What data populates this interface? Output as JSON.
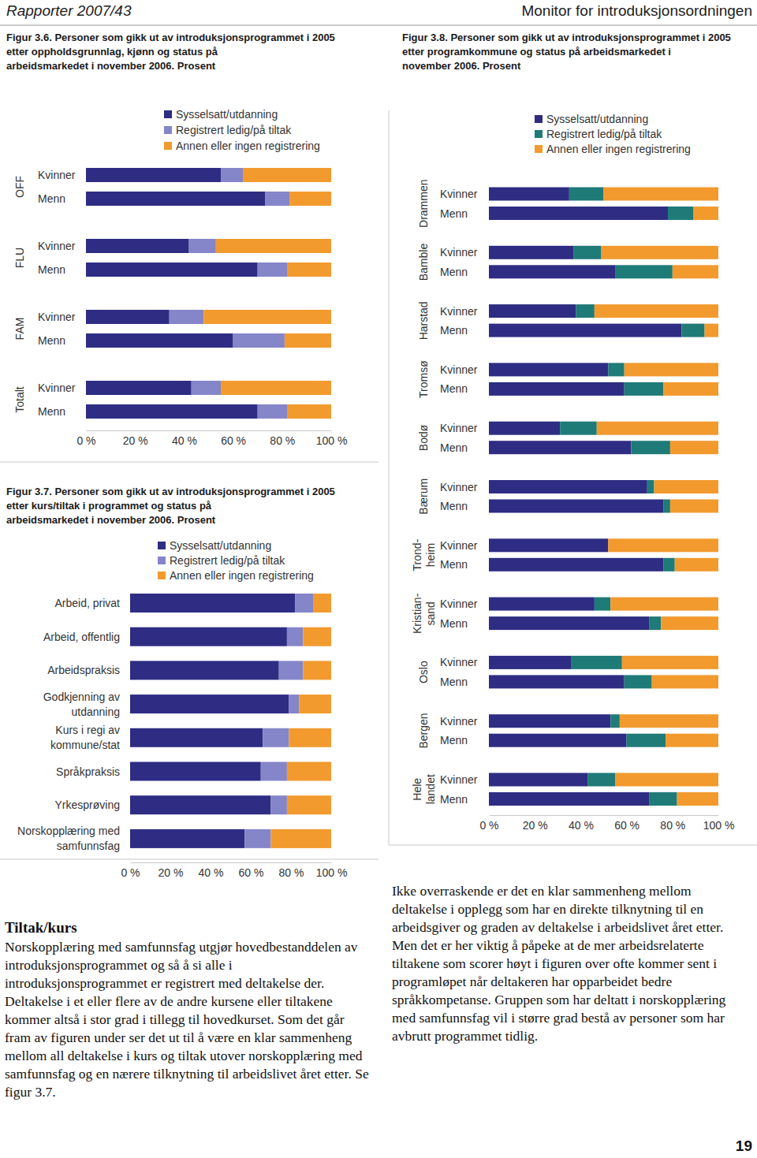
{
  "page": {
    "header_left": "Rapporter 2007/43",
    "header_right": "Monitor for introduksjonsordningen",
    "page_number": "19",
    "left_heading": "Tiltak/kurs",
    "left_paragraph": "Norskopplæring med samfunnsfag utgjør hovedbestanddelen av introduksjonsprogrammet og så å si alle i introduksjonsprogrammet er registrert med deltakelse der. Deltakelse i et eller flere av de andre kursene eller tiltakene kommer altså i stor grad i tillegg til hovedkurset. Som det går fram av figuren under ser det ut til å være en klar sammenheng mellom all deltakelse i kurs og tiltak utover norskopplæring med samfunnsfag og en nærere tilknytning til arbeidslivet året etter. Se figur 3.7.",
    "right_paragraph": "Ikke overraskende er det en klar sammenheng mellom deltakelse i opplegg som har en direkte tilknytning til en arbeidsgiver og graden av deltakelse i arbeidslivet året etter. Men det er her viktig å påpeke at de mer arbeidsrelaterte tiltakene som scorer høyt i figuren over ofte kommer sent i programløpet når deltakeren har opparbeidet bedre språkkompetanse. Gruppen som har deltatt i norskopplæring med samfunnsfag vil i større grad bestå av personer som har avbrutt programmet tidlig."
  },
  "chart_data": [
    {
      "type": "bar",
      "orientation": "horizontal",
      "stacked": true,
      "title": "Figur 3.6. Personer som gikk ut av introduksjonsprogrammet i 2005\netter oppholdsgrunnlag, kjønn og status på\narbeidsmarkedet i november 2006. Prosent",
      "groups": [
        "OFF",
        "FLU",
        "FAM",
        "Totalt"
      ],
      "categories": [
        "Kvinner",
        "Menn",
        "Kvinner",
        "Menn",
        "Kvinner",
        "Menn",
        "Kvinner",
        "Menn"
      ],
      "series": [
        {
          "name": "Sysselsatt/utdanning",
          "color": "#2e2d83",
          "values": [
            55,
            73,
            42,
            70,
            34,
            60,
            43,
            70
          ]
        },
        {
          "name": "Registrert ledig/på tiltak",
          "color": "#8585c9",
          "values": [
            9,
            10,
            11,
            12,
            14,
            21,
            12,
            12
          ]
        },
        {
          "name": "Annen eller ingen registrering",
          "color": "#f29a2e",
          "values": [
            36,
            17,
            47,
            18,
            52,
            19,
            45,
            18
          ]
        }
      ],
      "xlim": [
        0,
        100
      ],
      "xticks": [
        {
          "value": 0,
          "label": "0 %"
        },
        {
          "value": 20,
          "label": "20 %"
        },
        {
          "value": 40,
          "label": "40 %"
        },
        {
          "value": 60,
          "label": "60 %"
        },
        {
          "value": 80,
          "label": "80 %"
        },
        {
          "value": 100,
          "label": "100 %"
        }
      ]
    },
    {
      "type": "bar",
      "orientation": "horizontal",
      "stacked": true,
      "title": "Figur 3.7. Personer som gikk ut av introduksjonsprogrammet i 2005\netter kurs/tiltak i programmet og status på\narbeidsmarkedet i november 2006. Prosent",
      "categories": [
        "Arbeid, privat",
        "Arbeid, offentlig",
        "Arbeidspraksis",
        "Godkjenning av\nutdanning",
        "Kurs i regi av\nkommune/stat",
        "Språkpraksis",
        "Yrkesprøving",
        "Norskopplæring med\nsamfunnsfag"
      ],
      "series": [
        {
          "name": "Sysselsatt/utdanning",
          "color": "#2e2d83",
          "values": [
            82,
            78,
            74,
            79,
            66,
            65,
            70,
            57
          ]
        },
        {
          "name": "Registrert ledig/på tiltak",
          "color": "#8585c9",
          "values": [
            9,
            8,
            12,
            5,
            13,
            13,
            8,
            13
          ]
        },
        {
          "name": "Annen eller ingen registrering",
          "color": "#f29a2e",
          "values": [
            9,
            14,
            14,
            16,
            21,
            22,
            22,
            30
          ]
        }
      ],
      "xlim": [
        0,
        100
      ],
      "xticks": [
        {
          "value": 0,
          "label": "0 %"
        },
        {
          "value": 20,
          "label": "20 %"
        },
        {
          "value": 40,
          "label": "40 %"
        },
        {
          "value": 60,
          "label": "60 %"
        },
        {
          "value": 80,
          "label": "80 %"
        },
        {
          "value": 100,
          "label": "100 %"
        }
      ]
    },
    {
      "type": "bar",
      "orientation": "horizontal",
      "stacked": true,
      "title": "Figur 3.8. Personer som gikk ut av introduksjonsprogrammet i 2005\netter programkommune og status på arbeidsmarkedet i\nnovember 2006. Prosent",
      "groups": [
        "Drammen",
        "Bamble",
        "Harstad",
        "Tromsø",
        "Bodø",
        "Bærum",
        "Trond-\nheim",
        "Kristian-\nsand",
        "Oslo",
        "Bergen",
        "Hele\nlandet"
      ],
      "categories": [
        "Kvinner",
        "Menn",
        "Kvinner",
        "Menn",
        "Kvinner",
        "Menn",
        "Kvinner",
        "Menn",
        "Kvinner",
        "Menn",
        "Kvinner",
        "Menn",
        "Kvinner",
        "Menn",
        "Kvinner",
        "Menn",
        "Kvinner",
        "Menn",
        "Kvinner",
        "Menn",
        "Kvinner",
        "Menn"
      ],
      "series": [
        {
          "name": "Sysselsatt/utdanning",
          "color": "#2e2d83",
          "values": [
            35,
            78,
            37,
            55,
            38,
            84,
            52,
            59,
            31,
            62,
            69,
            76,
            52,
            76,
            46,
            70,
            36,
            59,
            53,
            60,
            43,
            70
          ]
        },
        {
          "name": "Registrert ledig/på tiltak",
          "color": "#1e7b78",
          "values": [
            15,
            11,
            12,
            25,
            8,
            10,
            7,
            17,
            16,
            17,
            3,
            3,
            0,
            5,
            7,
            5,
            22,
            12,
            4,
            17,
            12,
            12
          ]
        },
        {
          "name": "Annen eller ingen registrering",
          "color": "#f29a2e",
          "values": [
            50,
            11,
            51,
            20,
            54,
            6,
            41,
            24,
            53,
            21,
            28,
            21,
            48,
            19,
            47,
            25,
            42,
            29,
            43,
            23,
            45,
            18
          ]
        }
      ],
      "xlim": [
        0,
        100
      ],
      "xticks": [
        {
          "value": 0,
          "label": "0 %"
        },
        {
          "value": 20,
          "label": "20 %"
        },
        {
          "value": 40,
          "label": "40 %"
        },
        {
          "value": 60,
          "label": "60 %"
        },
        {
          "value": 80,
          "label": "80 %"
        },
        {
          "value": 100,
          "label": "100 %"
        }
      ]
    }
  ]
}
